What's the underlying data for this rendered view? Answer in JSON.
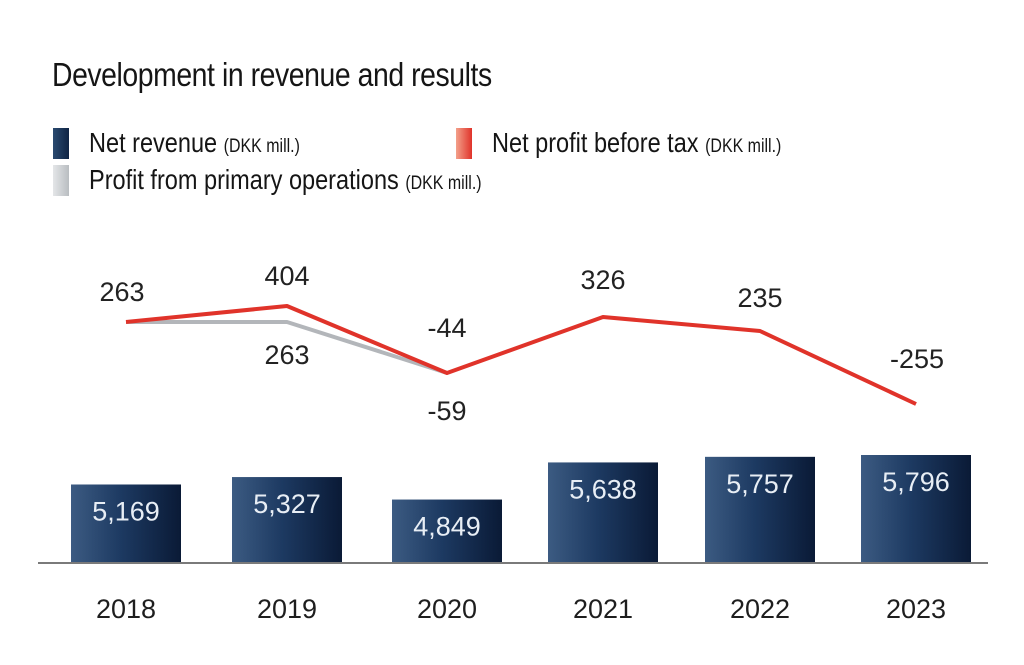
{
  "chart_data": {
    "type": "bar",
    "title": "Development in revenue and results",
    "categories": [
      "2018",
      "2019",
      "2020",
      "2021",
      "2022",
      "2023"
    ],
    "xlabel": "",
    "ylabel": "",
    "grid": false,
    "legend_position": "top-left",
    "series": [
      {
        "name": "Net revenue",
        "unit": "(DKK mill.)",
        "type": "bar",
        "color": "#1b3358",
        "values": [
          5169,
          5327,
          4849,
          5638,
          5757,
          5796
        ],
        "labels": [
          "5,169",
          "5,327",
          "4,849",
          "5,638",
          "5,757",
          "5,796"
        ]
      },
      {
        "name": "Net profit before tax",
        "unit": "(DKK mill.)",
        "type": "line",
        "color": "#e0332a",
        "values": [
          263,
          404,
          -44,
          326,
          235,
          -255
        ],
        "labels": [
          "263",
          "404",
          "-44",
          "326",
          "235",
          "-255"
        ]
      },
      {
        "name": "Profit from primary operations",
        "unit": "(DKK mill.)",
        "type": "line",
        "color": "#b9bdc1",
        "values": [
          263,
          263,
          -59,
          null,
          null,
          null
        ],
        "labels": [
          "",
          "263",
          "-59",
          "",
          "",
          ""
        ]
      }
    ]
  }
}
